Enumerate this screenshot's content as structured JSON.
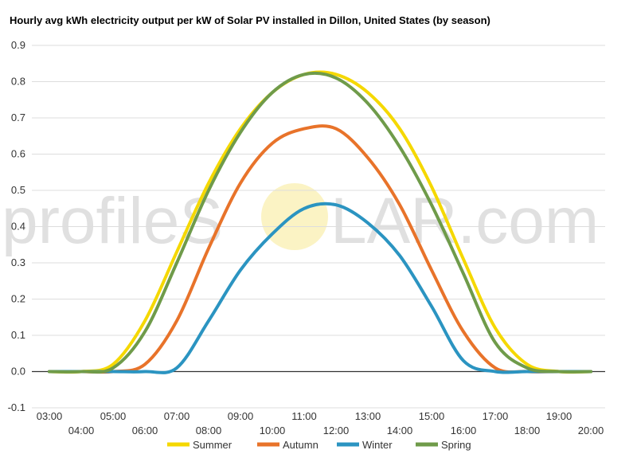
{
  "chart_data": {
    "type": "line",
    "title": "Hourly avg kWh electricity output per kW of Solar PV installed in Dillon, United States (by season)",
    "xlabel": "",
    "ylabel": "",
    "ylim": [
      -0.1,
      0.9
    ],
    "yticks": [
      "-0.1",
      "0.0",
      "0.1",
      "0.2",
      "0.3",
      "0.4",
      "0.5",
      "0.6",
      "0.7",
      "0.8",
      "0.9"
    ],
    "x": [
      "03:00",
      "04:00",
      "05:00",
      "06:00",
      "07:00",
      "08:00",
      "09:00",
      "10:00",
      "11:00",
      "12:00",
      "13:00",
      "14:00",
      "15:00",
      "16:00",
      "17:00",
      "18:00",
      "19:00",
      "20:00"
    ],
    "grid": true,
    "legend_position": "bottom",
    "series": [
      {
        "name": "Summer",
        "color": "#f5d800",
        "values": [
          0.0,
          0.0,
          0.02,
          0.14,
          0.33,
          0.52,
          0.67,
          0.77,
          0.82,
          0.82,
          0.77,
          0.67,
          0.51,
          0.31,
          0.12,
          0.02,
          0.0,
          0.0
        ]
      },
      {
        "name": "Autumn",
        "color": "#e8732a",
        "values": [
          0.0,
          0.0,
          0.0,
          0.02,
          0.14,
          0.34,
          0.52,
          0.63,
          0.67,
          0.67,
          0.59,
          0.46,
          0.28,
          0.11,
          0.01,
          0.0,
          0.0,
          0.0
        ]
      },
      {
        "name": "Winter",
        "color": "#2b94c1",
        "values": [
          0.0,
          0.0,
          0.0,
          0.0,
          0.01,
          0.14,
          0.28,
          0.38,
          0.45,
          0.46,
          0.41,
          0.32,
          0.18,
          0.03,
          0.0,
          0.0,
          0.0,
          0.0
        ]
      },
      {
        "name": "Spring",
        "color": "#6f9b4a",
        "values": [
          0.0,
          0.0,
          0.01,
          0.11,
          0.3,
          0.5,
          0.66,
          0.77,
          0.82,
          0.81,
          0.74,
          0.62,
          0.46,
          0.27,
          0.08,
          0.01,
          0.0,
          0.0
        ]
      }
    ]
  },
  "watermark": {
    "text_left": "profileS",
    "text_right": "LAR.com",
    "sun_color": "#fbf3c4"
  }
}
